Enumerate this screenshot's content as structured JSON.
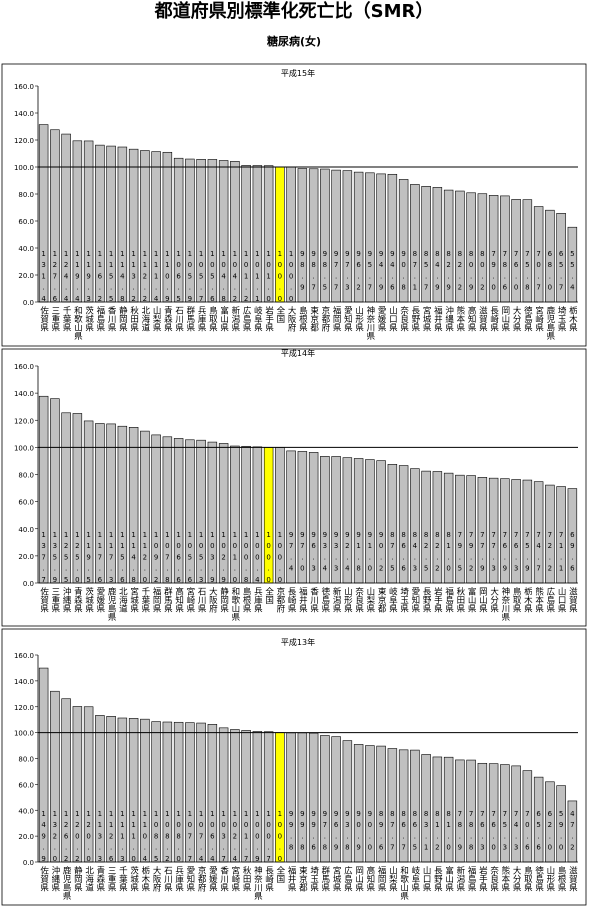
{
  "title": "都道府県別標準化死亡比（SMR）",
  "subtitle": "糖尿病(女)",
  "chart_data": [
    {
      "type": "bar",
      "title": "平成15年",
      "color": "#c0c0c0",
      "highlight_category": "全国",
      "highlight_color": "#ffff00",
      "hline": 100,
      "ylim": [
        0,
        160
      ],
      "yticks": [
        {
          "value": 0,
          "label": "0.0"
        },
        {
          "value": 20,
          "label": "20.0"
        },
        {
          "value": 40,
          "label": "40.0"
        },
        {
          "value": 60,
          "label": "60.0"
        },
        {
          "value": 80,
          "label": "80.0"
        },
        {
          "value": 100,
          "label": "100.0"
        },
        {
          "value": 120,
          "label": "120.0"
        },
        {
          "value": 140,
          "label": "140.0"
        },
        {
          "value": 160,
          "label": "160.0"
        }
      ],
      "categories": [
        "佐賀県",
        "三重県",
        "千葉県",
        "和歌山県",
        "茨城県",
        "福島県",
        "香川県",
        "静岡県",
        "秋田県",
        "北海道",
        "山梨県",
        "青森県",
        "石川県",
        "群馬県",
        "兵庫県",
        "鳥取県",
        "富山県",
        "新潟県",
        "広島県",
        "岐阜県",
        "岩手県",
        "全国",
        "大阪府",
        "島根県",
        "東京都",
        "京都府",
        "福岡県",
        "愛知県",
        "山形県",
        "神奈川県",
        "愛媛県",
        "山口県",
        "奈良県",
        "長野県",
        "宮城県",
        "福井県",
        "沖縄県",
        "熊本県",
        "高知県",
        "滋賀県",
        "長崎県",
        "岡山県",
        "大分県",
        "徳島県",
        "宮崎県",
        "鹿児島県",
        "埼玉県",
        "栃木県"
      ],
      "values": [
        131.4,
        127.6,
        124.4,
        119.4,
        119.3,
        116.2,
        115.5,
        114.8,
        113.2,
        112.2,
        111.4,
        110.9,
        106.5,
        105.9,
        105.7,
        105.6,
        104.8,
        104.2,
        101.2,
        101.1,
        101.0,
        100.0,
        100.0,
        98.9,
        98.7,
        98.5,
        97.7,
        97.3,
        96.2,
        95.7,
        94.9,
        94.6,
        90.8,
        87.1,
        85.7,
        84.9,
        82.9,
        82.2,
        80.9,
        80.2,
        79.0,
        78.6,
        76.0,
        75.8,
        70.7,
        68.0,
        65.7,
        55.4
      ],
      "value_labels": [
        "131.4",
        "127.6",
        "124.4",
        "119.4",
        "119.3",
        "116.2",
        "115.5",
        "114.8",
        "113.2",
        "112.2",
        "111.4",
        "110.9",
        "106.5",
        "105.9",
        "105.7",
        "105.6",
        "104.8",
        "104.2",
        "101.2",
        "101.1",
        "101.0",
        "100.0",
        "100.0",
        "98.9",
        "98.7",
        "98.5",
        "97.7",
        "97.3",
        "96.2",
        "95.7",
        "94.9",
        "94.6",
        "90.8",
        "87.1",
        "85.7",
        "84.9",
        "82.9",
        "82.2",
        "80.9",
        "80.2",
        "79.0",
        "78.6",
        "76.0",
        "75.8",
        "70.7",
        "68.0",
        "65.7",
        "55.4"
      ]
    },
    {
      "type": "bar",
      "title": "平成14年",
      "color": "#c0c0c0",
      "highlight_category": "全国",
      "highlight_color": "#ffff00",
      "hline": 100,
      "ylim": [
        0,
        160
      ],
      "yticks": [
        {
          "value": 0,
          "label": "0.0"
        },
        {
          "value": 20,
          "label": "20.0"
        },
        {
          "value": 40,
          "label": "40.0"
        },
        {
          "value": 60,
          "label": "60.0"
        },
        {
          "value": 80,
          "label": "80.0"
        },
        {
          "value": 100,
          "label": "100.0"
        },
        {
          "value": 120,
          "label": "120.0"
        },
        {
          "value": 140,
          "label": "140.0"
        },
        {
          "value": 160,
          "label": "160.0"
        }
      ],
      "categories": [
        "佐賀県",
        "三重県",
        "沖縄県",
        "青森県",
        "茨城県",
        "愛媛県",
        "鹿児島県",
        "北海道",
        "宮城県",
        "千葉県",
        "福岡県",
        "群馬県",
        "高知県",
        "宮崎県",
        "石川県",
        "大阪府",
        "静岡県",
        "和歌山県",
        "島根県",
        "兵庫県",
        "全国",
        "京都府",
        "長崎県",
        "福井県",
        "香川県",
        "徳島県",
        "新潟県",
        "山形県",
        "奈良県",
        "山梨県",
        "東京都",
        "岐阜県",
        "埼玉県",
        "愛知県",
        "長野県",
        "岩手県",
        "福島県",
        "秋田県",
        "富山県",
        "岡山県",
        "大分県",
        "神奈川県",
        "鳥取県",
        "栃木県",
        "熊本県",
        "広島県",
        "山口県",
        "滋賀県"
      ],
      "values": [
        137.7,
        135.9,
        125.5,
        125.0,
        119.5,
        117.6,
        117.3,
        115.6,
        114.8,
        112.0,
        109.2,
        107.8,
        106.6,
        105.6,
        105.3,
        103.9,
        102.9,
        101.0,
        100.8,
        100.4,
        100.0,
        100.0,
        97.4,
        97.0,
        96.3,
        93.4,
        93.3,
        92.4,
        91.8,
        91.0,
        90.2,
        87.5,
        86.6,
        84.3,
        82.5,
        82.2,
        81.0,
        79.5,
        79.2,
        77.9,
        77.3,
        76.9,
        76.3,
        75.9,
        74.7,
        72.2,
        71.1,
        69.6
      ],
      "value_labels": [
        "137.7",
        "135.9",
        "125.5",
        "125.0",
        "119.5",
        "117.6",
        "117.3",
        "115.6",
        "114.8",
        "112.0",
        "109.2",
        "107.8",
        "106.6",
        "105.6",
        "105.3",
        "103.9",
        "102.9",
        "101.0",
        "100.8",
        "100.4",
        "100.0",
        "100.0",
        "97.4",
        "97.0",
        "96.3",
        "93.4",
        "93.3",
        "92.4",
        "91.8",
        "91.0",
        "90.2",
        "87.5",
        "86.6",
        "84.3",
        "82.5",
        "82.2",
        "81.0",
        "79.5",
        "79.2",
        "77.9",
        "77.3",
        "76.9",
        "76.3",
        "75.9",
        "74.7",
        "72.2",
        "71.1",
        "69.6"
      ]
    },
    {
      "type": "bar",
      "title": "平成13年",
      "color": "#c0c0c0",
      "highlight_category": "全国",
      "highlight_color": "#ffff00",
      "hline": 100,
      "ylim": [
        0,
        160
      ],
      "yticks": [
        {
          "value": 0,
          "label": "0.0"
        },
        {
          "value": 20,
          "label": "20.0"
        },
        {
          "value": 40,
          "label": "40.0"
        },
        {
          "value": 60,
          "label": "60.0"
        },
        {
          "value": 80,
          "label": "80.0"
        },
        {
          "value": 100,
          "label": "100.0"
        },
        {
          "value": 120,
          "label": "120.0"
        },
        {
          "value": 140,
          "label": "140.0"
        },
        {
          "value": 160,
          "label": "160.0"
        }
      ],
      "categories": [
        "佐賀県",
        "沖縄県",
        "鹿児島県",
        "静岡県",
        "北海道",
        "青森県",
        "三重県",
        "千葉県",
        "茨城県",
        "栃木県",
        "大阪府",
        "石川県",
        "兵庫県",
        "愛知県",
        "京都府",
        "愛媛県",
        "香川県",
        "宮崎県",
        "秋田県",
        "神奈川県",
        "長崎県",
        "全国",
        "福井県",
        "東京都",
        "埼玉県",
        "群馬県",
        "宮城県",
        "広島県",
        "岡山県",
        "高知県",
        "福岡県",
        "山梨県",
        "和歌山県",
        "岐阜県",
        "山口県",
        "長野県",
        "富山県",
        "新潟県",
        "福島県",
        "岩手県",
        "奈良県",
        "熊本県",
        "大分県",
        "鳥取県",
        "徳島県",
        "山形県",
        "島根県",
        "滋賀県"
      ],
      "values": [
        149.9,
        132.0,
        126.2,
        120.2,
        120.0,
        113.3,
        112.6,
        111.3,
        111.0,
        110.4,
        108.5,
        108.2,
        108.0,
        107.7,
        107.4,
        106.4,
        103.7,
        102.4,
        101.7,
        100.9,
        100.7,
        100.0,
        99.8,
        99.8,
        99.6,
        97.8,
        96.9,
        93.8,
        90.9,
        90.0,
        89.6,
        87.7,
        86.7,
        86.5,
        83.1,
        81.2,
        81.0,
        78.9,
        78.8,
        76.3,
        76.0,
        75.3,
        74.3,
        70.6,
        65.6,
        62.0,
        59.0,
        47.2
      ],
      "value_labels": [
        "149.9",
        "132.0",
        "126.2",
        "120.2",
        "120.0",
        "113.3",
        "112.6",
        "111.3",
        "111.0",
        "110.4",
        "108.5",
        "108.2",
        "108.0",
        "107.7",
        "107.4",
        "106.4",
        "103.7",
        "102.4",
        "101.7",
        "100.9",
        "100.7",
        "100.0",
        "99.8",
        "99.8",
        "99.6",
        "97.8",
        "96.9",
        "93.8",
        "90.9",
        "90.0",
        "89.6",
        "87.7",
        "86.7",
        "86.5",
        "83.1",
        "81.2",
        "81.0",
        "78.9",
        "78.8",
        "76.3",
        "76.0",
        "75.3",
        "74.3",
        "70.6",
        "65.6",
        "62.0",
        "59.0",
        "47.2"
      ]
    }
  ]
}
